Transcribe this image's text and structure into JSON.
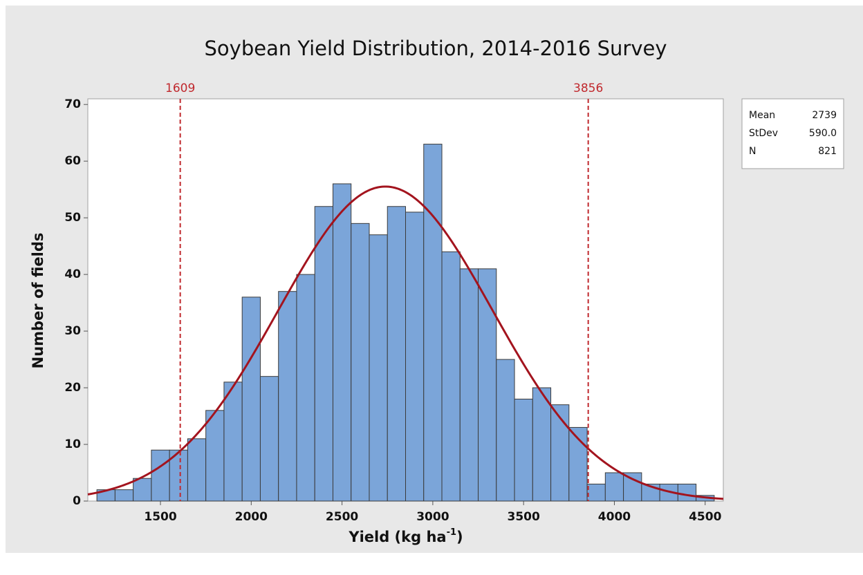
{
  "chart_data": {
    "type": "histogram",
    "title": "Soybean Yield Distribution, 2014-2016 Survey",
    "xlabel": [
      "Yield  (kg ha",
      "-1",
      ")"
    ],
    "ylabel": "Number of fields",
    "bins": [
      1150,
      1250,
      1350,
      1450,
      1550,
      1650,
      1750,
      1850,
      1950,
      2050,
      2150,
      2250,
      2350,
      2450,
      2550,
      2650,
      2750,
      2850,
      2950,
      3050,
      3150,
      3250,
      3350,
      3450,
      3550,
      3650,
      3750,
      3850,
      3950,
      4050,
      4150,
      4250,
      4350,
      4450,
      4550
    ],
    "values": [
      2,
      2,
      4,
      9,
      9,
      11,
      16,
      21,
      36,
      22,
      37,
      40,
      52,
      56,
      49,
      47,
      52,
      51,
      63,
      44,
      41,
      41,
      25,
      18,
      20,
      17,
      13,
      3,
      5,
      5,
      3,
      3,
      3,
      1
    ],
    "color": "#7ba5d9",
    "edge_color": "#3a3a3a",
    "xlim": [
      1100,
      4600
    ],
    "ylim": [
      0,
      71
    ],
    "xticks": [
      1500,
      2000,
      2500,
      3000,
      3500,
      4000,
      4500
    ],
    "yticks": [
      0,
      10,
      20,
      30,
      40,
      50,
      60,
      70
    ],
    "fit": "normal",
    "fit_color": "#a3141e",
    "reference_lines": [
      1609,
      3856
    ],
    "reference_color": "#c0282d",
    "stats": [
      {
        "name": "Mean",
        "value": 2739
      },
      {
        "name": "StDev",
        "value": 590,
        "label": "590.0"
      },
      {
        "name": "N",
        "value": 821
      }
    ]
  }
}
